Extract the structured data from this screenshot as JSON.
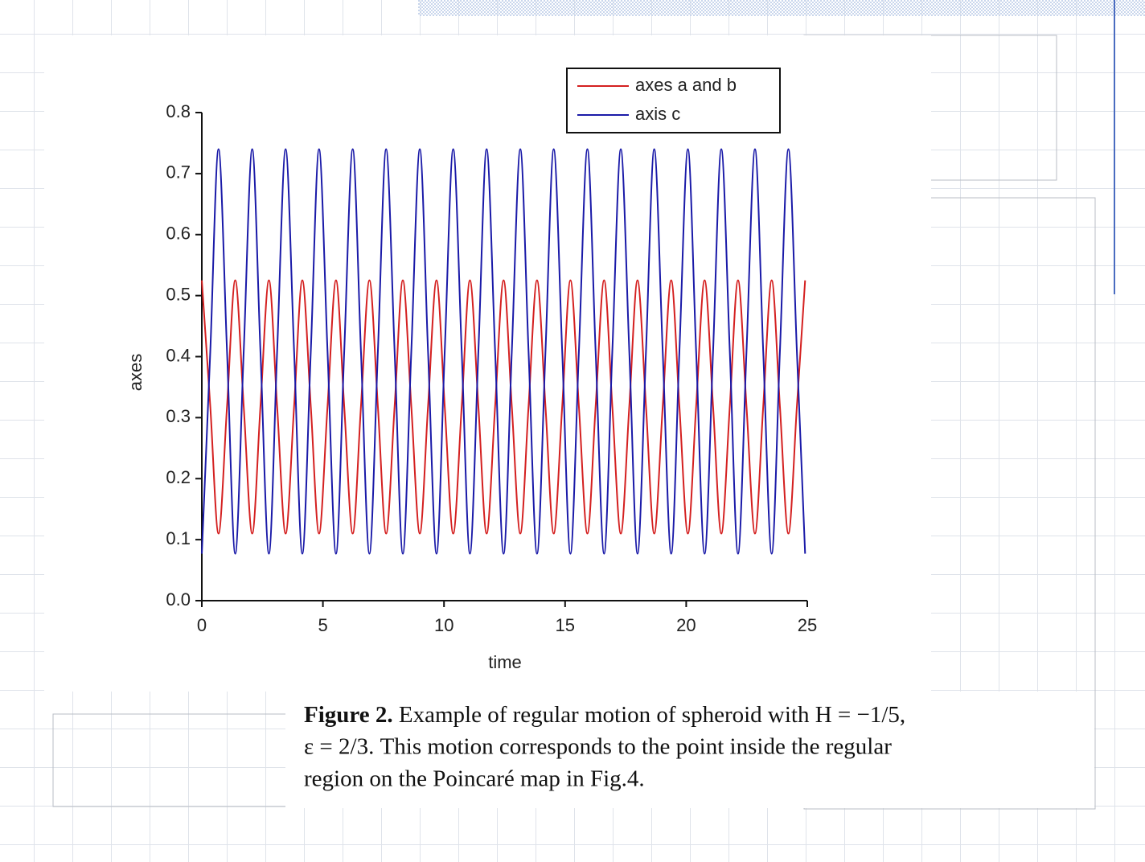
{
  "chart_data": {
    "type": "line",
    "xlabel": "time",
    "ylabel": "axes",
    "x": [
      0,
      0.35,
      0.69,
      1.04,
      1.38,
      1.73,
      2.08,
      2.42,
      2.77,
      3.11,
      3.46,
      3.81,
      4.15,
      4.5,
      4.84,
      5.19,
      5.54,
      5.88,
      6.23,
      6.57,
      6.92,
      7.27,
      7.61,
      7.96,
      8.3,
      8.65,
      9.0,
      9.34,
      9.69,
      10.03,
      10.38,
      10.73,
      11.07,
      11.42,
      11.76,
      12.11,
      12.46,
      12.8,
      13.15,
      13.49,
      13.84,
      14.19,
      14.53,
      14.88,
      15.22,
      15.57,
      15.92,
      16.26,
      16.61,
      16.95,
      17.3,
      17.65,
      17.99,
      18.34,
      18.68,
      19.03,
      19.38,
      19.72,
      20.07,
      20.41,
      20.76,
      21.11,
      21.45,
      21.8,
      22.14,
      22.49,
      22.84,
      23.18,
      23.53,
      23.87,
      24.22,
      24.57,
      24.91
    ],
    "series": [
      {
        "name": "axes a and b",
        "color": "#d42020",
        "values": [
          0.525,
          0.318,
          0.11,
          0.318,
          0.525,
          0.318,
          0.11,
          0.318,
          0.525,
          0.318,
          0.11,
          0.318,
          0.525,
          0.318,
          0.11,
          0.318,
          0.525,
          0.318,
          0.11,
          0.318,
          0.525,
          0.318,
          0.11,
          0.318,
          0.525,
          0.318,
          0.11,
          0.318,
          0.525,
          0.318,
          0.11,
          0.318,
          0.525,
          0.318,
          0.11,
          0.318,
          0.525,
          0.318,
          0.11,
          0.318,
          0.525,
          0.318,
          0.11,
          0.318,
          0.525,
          0.318,
          0.11,
          0.318,
          0.525,
          0.318,
          0.11,
          0.318,
          0.525,
          0.318,
          0.11,
          0.318,
          0.525,
          0.318,
          0.11,
          0.318,
          0.525,
          0.318,
          0.11,
          0.318,
          0.525,
          0.318,
          0.11,
          0.318,
          0.525,
          0.318,
          0.11,
          0.318,
          0.525
        ]
      },
      {
        "name": "axis c",
        "color": "#1a1aa8",
        "values": [
          0.077,
          0.409,
          0.74,
          0.409,
          0.077,
          0.409,
          0.74,
          0.409,
          0.077,
          0.409,
          0.74,
          0.409,
          0.077,
          0.409,
          0.74,
          0.409,
          0.077,
          0.409,
          0.74,
          0.409,
          0.077,
          0.409,
          0.74,
          0.409,
          0.077,
          0.409,
          0.74,
          0.409,
          0.077,
          0.409,
          0.74,
          0.409,
          0.077,
          0.409,
          0.74,
          0.409,
          0.077,
          0.409,
          0.74,
          0.409,
          0.077,
          0.409,
          0.74,
          0.409,
          0.077,
          0.409,
          0.74,
          0.409,
          0.077,
          0.409,
          0.74,
          0.409,
          0.077,
          0.409,
          0.74,
          0.409,
          0.077,
          0.409,
          0.74,
          0.409,
          0.077,
          0.409,
          0.74,
          0.409,
          0.077,
          0.409,
          0.74,
          0.409,
          0.077,
          0.409,
          0.74,
          0.409,
          0.077
        ]
      }
    ],
    "xlim": [
      0,
      25
    ],
    "xticks": [
      0,
      5,
      10,
      15,
      20,
      25
    ],
    "ylim": [
      0,
      0.8
    ],
    "yticks": [
      {
        "value": 0,
        "label": "0.0"
      },
      0.1,
      0.2,
      0.3,
      0.4,
      0.5,
      0.6,
      0.7,
      0.8
    ],
    "legend": "upper-right",
    "grid": false
  },
  "caption": {
    "label": "Figure 2.",
    "lines": [
      "Example of regular motion of spheroid with H = −1/5,",
      "ε = 2/3. This motion corresponds to the point inside the regular",
      "region on the Poincaré map in Fig.4."
    ]
  }
}
